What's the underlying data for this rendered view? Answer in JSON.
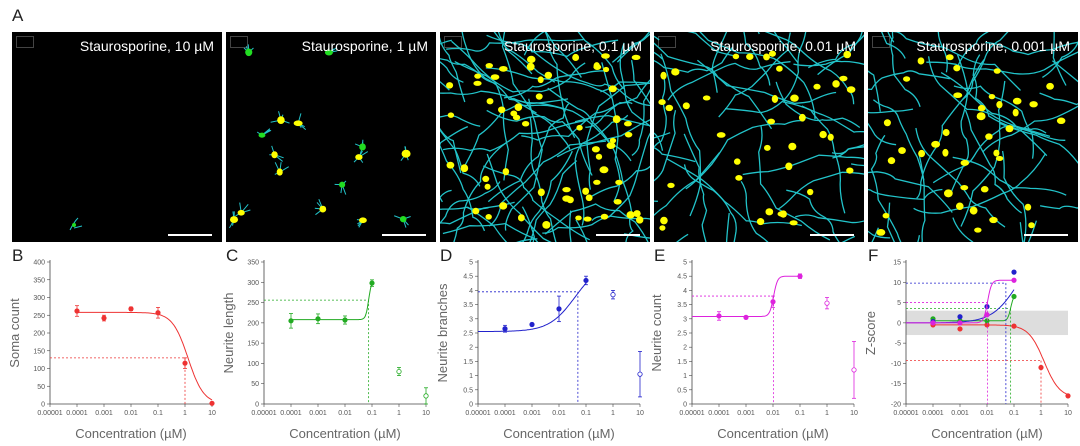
{
  "figure": {
    "panel_a_letter": "A",
    "panels_letters": [
      "B",
      "C",
      "D",
      "E",
      "F"
    ]
  },
  "image_panels": [
    {
      "title": "Staurosporine, 10 µM",
      "density": "none"
    },
    {
      "title": "Staurosporine, 1 µM",
      "density": "sparse"
    },
    {
      "title": "Staurosporine, 0.1 µM",
      "density": "dense"
    },
    {
      "title": "Staurosporine, 0.01 µM",
      "density": "medium"
    },
    {
      "title": "Staurosporine, 0.001 µM",
      "density": "medium"
    }
  ],
  "colors": {
    "neurite": "#22c3c9",
    "soma": "#ffff00",
    "nucleus": "#22dd22",
    "red": "#ee3333",
    "green": "#22aa22",
    "blue": "#2222cc",
    "magenta": "#dd22dd",
    "band": "#dddddd"
  },
  "chart_data": [
    {
      "type": "scatter",
      "id": "B",
      "xscale": "log",
      "xlabel": "Concentration (µM)",
      "ylabel": "Soma count",
      "xticks": [
        "0.00001",
        "0.0001",
        "0.001",
        "0.01",
        "0.1",
        "1",
        "10"
      ],
      "yticks": [
        "0",
        "50",
        "100",
        "150",
        "200",
        "250",
        "300",
        "350",
        "400"
      ],
      "ylim": [
        0,
        400
      ],
      "series": [
        {
          "name": "Soma count",
          "color": "#ee3333",
          "x": [
            0.0001,
            0.001,
            0.01,
            0.1,
            1,
            10
          ],
          "y": [
            262,
            242,
            268,
            257,
            115,
            2
          ],
          "err": [
            15,
            8,
            5,
            15,
            15,
            2
          ],
          "open": [
            false,
            false,
            false,
            false,
            false,
            false
          ],
          "fit": {
            "top": 258,
            "bottom": 0,
            "ec50": 1.3,
            "hill": 1.5,
            "fit_from": 0.0001,
            "fit_to": 10
          },
          "guide": {
            "x": 1,
            "y": 130
          }
        }
      ]
    },
    {
      "type": "scatter",
      "id": "C",
      "xscale": "log",
      "xlabel": "Concentration (µM)",
      "ylabel": "Neurite length",
      "xticks": [
        "0.00001",
        "0.0001",
        "0.001",
        "0.01",
        "0.1",
        "1",
        "10"
      ],
      "yticks": [
        "0",
        "50",
        "100",
        "150",
        "200",
        "250",
        "300",
        "350"
      ],
      "ylim": [
        0,
        350
      ],
      "series": [
        {
          "name": "Neurite length",
          "color": "#22aa22",
          "x": [
            0.0001,
            0.001,
            0.01,
            0.1,
            1,
            10
          ],
          "y": [
            205,
            210,
            207,
            298,
            80,
            20
          ],
          "err": [
            18,
            12,
            10,
            8,
            10,
            20
          ],
          "open": [
            false,
            false,
            false,
            false,
            true,
            true
          ],
          "fit": {
            "top": 305,
            "bottom": 208,
            "ec50": 0.075,
            "hill": 8,
            "fit_from": 0.0001,
            "fit_to": 0.1
          },
          "guide": {
            "x": 0.075,
            "y": 256
          }
        }
      ]
    },
    {
      "type": "scatter",
      "id": "D",
      "xscale": "log",
      "xlabel": "Concentration (µM)",
      "ylabel": "Neurite branches",
      "xticks": [
        "0.00001",
        "0.0001",
        "0.001",
        "0.01",
        "0.1",
        "1",
        "10"
      ],
      "yticks": [
        "0",
        "0.5",
        "1",
        "1.5",
        "2",
        "2.5",
        "3",
        "3.5",
        "4",
        "4.5",
        "5"
      ],
      "ylim": [
        0,
        5
      ],
      "series": [
        {
          "name": "Neurite branches",
          "color": "#2222cc",
          "x": [
            0.0001,
            0.001,
            0.01,
            0.1,
            1,
            10
          ],
          "y": [
            2.65,
            2.8,
            3.35,
            4.35,
            3.85,
            1.05
          ],
          "err": [
            0.12,
            0.05,
            0.45,
            0.15,
            0.15,
            0.8
          ],
          "open": [
            false,
            false,
            false,
            false,
            true,
            true
          ],
          "fit": {
            "top": 5.0,
            "bottom": 2.55,
            "ec50": 0.04,
            "hill": 0.9,
            "fit_from": 1e-05,
            "fit_to": 0.1
          },
          "guide": {
            "x": 0.05,
            "y": 3.95
          }
        }
      ]
    },
    {
      "type": "scatter",
      "id": "E",
      "xscale": "log",
      "xlabel": "Concentration (µM)",
      "ylabel": "Neurite count",
      "xticks": [
        "0.00001",
        "0.0001",
        "0.001",
        "0.01",
        "0.1",
        "1",
        "10"
      ],
      "yticks": [
        "0",
        "0.5",
        "1",
        "1.5",
        "2",
        "2.5",
        "3",
        "3.5",
        "4",
        "4.5",
        "5"
      ],
      "ylim": [
        0,
        5
      ],
      "series": [
        {
          "name": "Neurite count",
          "color": "#dd22dd",
          "x": [
            0.0001,
            0.001,
            0.01,
            0.1,
            1,
            10
          ],
          "y": [
            3.1,
            3.05,
            3.6,
            4.5,
            3.55,
            1.2
          ],
          "err": [
            0.15,
            0.05,
            0.2,
            0.08,
            0.2,
            1.0
          ],
          "open": [
            false,
            false,
            false,
            false,
            true,
            true
          ],
          "fit": {
            "top": 4.5,
            "bottom": 3.08,
            "ec50": 0.0105,
            "hill": 6,
            "fit_from": 1e-05,
            "fit_to": 0.1
          },
          "guide": {
            "x": 0.0105,
            "y": 3.8
          }
        }
      ]
    },
    {
      "type": "scatter",
      "id": "F",
      "xscale": "log",
      "xlabel": "Concentration (µM)",
      "ylabel": "Z-score",
      "xticks": [
        "0.00001",
        "0.0001",
        "0.001",
        "0.01",
        "0.1",
        "1",
        "10"
      ],
      "yticks": [
        "-20",
        "-15",
        "-10",
        "-5",
        "0",
        "5",
        "10",
        "15"
      ],
      "ylim": [
        -20,
        15
      ],
      "band": [
        -3,
        3
      ],
      "series": [
        {
          "name": "Soma count",
          "color": "#ee3333",
          "x": [
            0.0001,
            0.001,
            0.01,
            0.1,
            1,
            10
          ],
          "y": [
            -0.5,
            -1.5,
            -0.5,
            -0.8,
            -11,
            -18
          ],
          "fit": {
            "top": -0.5,
            "bottom": -18.5,
            "ec50": 1.3,
            "hill": 1.5,
            "fit_from": 0.0001,
            "fit_to": 10
          },
          "guide": {
            "x": 1,
            "y": -9.3
          }
        },
        {
          "name": "Neurite length",
          "color": "#22aa22",
          "x": [
            0.0001,
            0.001,
            0.01,
            0.1
          ],
          "y": [
            1,
            0.5,
            0.5,
            6.5
          ],
          "fit": {
            "top": 6.8,
            "bottom": 0.5,
            "ec50": 0.075,
            "hill": 8,
            "fit_from": 0.0001,
            "fit_to": 0.1
          },
          "guide": {
            "x": 0.075,
            "y": 3.5
          }
        },
        {
          "name": "Neurite branches",
          "color": "#2222cc",
          "x": [
            0.0001,
            0.001,
            0.01,
            0.1
          ],
          "y": [
            0.3,
            1.5,
            4,
            12.5
          ],
          "fit": {
            "top": 20,
            "bottom": 0,
            "ec50": 0.15,
            "hill": 0.9,
            "fit_from": 1e-05,
            "fit_to": 0.1
          },
          "guide": {
            "x": 0.05,
            "y": 9.8
          }
        },
        {
          "name": "Neurite count",
          "color": "#dd22dd",
          "x": [
            0.0001,
            0.001,
            0.01,
            0.1
          ],
          "y": [
            0,
            0,
            2,
            10.5
          ],
          "fit": {
            "top": 10.5,
            "bottom": 0,
            "ec50": 0.0105,
            "hill": 6,
            "fit_from": 1e-05,
            "fit_to": 0.1
          },
          "guide": {
            "x": 0.0105,
            "y": 5
          }
        }
      ]
    }
  ]
}
